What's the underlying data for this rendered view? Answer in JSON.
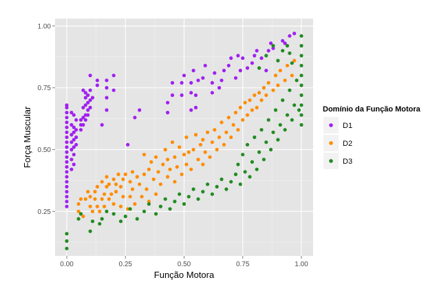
{
  "chart_data": {
    "type": "scatter",
    "xlabel": "Função Motora",
    "ylabel": "Força Muscular",
    "xlim": [
      -0.05,
      1.05
    ],
    "ylim": [
      0.07,
      1.03
    ],
    "xticks": [
      "0.00",
      "0.25",
      "0.50",
      "0.75",
      "1.00"
    ],
    "yticks": [
      "0.25",
      "0.50",
      "0.75",
      "1.00"
    ],
    "grid": true,
    "legend": {
      "title": "Domínio da Função Motora",
      "placement": "right"
    },
    "series": [
      {
        "name": "D1",
        "color": "#a020f0",
        "points": [
          [
            0,
            0.27
          ],
          [
            0,
            0.29
          ],
          [
            0,
            0.31
          ],
          [
            0,
            0.33
          ],
          [
            0,
            0.35
          ],
          [
            0,
            0.37
          ],
          [
            0,
            0.39
          ],
          [
            0,
            0.41
          ],
          [
            0,
            0.43
          ],
          [
            0,
            0.45
          ],
          [
            0,
            0.47
          ],
          [
            0,
            0.49
          ],
          [
            0,
            0.51
          ],
          [
            0,
            0.53
          ],
          [
            0,
            0.55
          ],
          [
            0,
            0.57
          ],
          [
            0,
            0.59
          ],
          [
            0,
            0.61
          ],
          [
            0,
            0.63
          ],
          [
            0,
            0.65
          ],
          [
            0,
            0.67
          ],
          [
            0,
            0.68
          ],
          [
            0.02,
            0.42
          ],
          [
            0.02,
            0.46
          ],
          [
            0.02,
            0.5
          ],
          [
            0.02,
            0.53
          ],
          [
            0.02,
            0.56
          ],
          [
            0.02,
            0.6
          ],
          [
            0.02,
            0.65
          ],
          [
            0.03,
            0.44
          ],
          [
            0.03,
            0.48
          ],
          [
            0.03,
            0.51
          ],
          [
            0.03,
            0.54
          ],
          [
            0.03,
            0.57
          ],
          [
            0.03,
            0.59
          ],
          [
            0.03,
            0.64
          ],
          [
            0.04,
            0.52
          ],
          [
            0.04,
            0.55
          ],
          [
            0.04,
            0.58
          ],
          [
            0.04,
            0.62
          ],
          [
            0.06,
            0.58
          ],
          [
            0.06,
            0.6
          ],
          [
            0.06,
            0.62
          ],
          [
            0.07,
            0.6
          ],
          [
            0.07,
            0.63
          ],
          [
            0.07,
            0.67
          ],
          [
            0.07,
            0.74
          ],
          [
            0.08,
            0.62
          ],
          [
            0.08,
            0.64
          ],
          [
            0.08,
            0.68
          ],
          [
            0.08,
            0.71
          ],
          [
            0.08,
            0.73
          ],
          [
            0.09,
            0.64
          ],
          [
            0.09,
            0.66
          ],
          [
            0.09,
            0.69
          ],
          [
            0.09,
            0.72
          ],
          [
            0.1,
            0.67
          ],
          [
            0.1,
            0.7
          ],
          [
            0.1,
            0.74
          ],
          [
            0.1,
            0.8
          ],
          [
            0.11,
            0.71
          ],
          [
            0.13,
            0.76
          ],
          [
            0.13,
            0.78
          ],
          [
            0.15,
            0.6
          ],
          [
            0.17,
            0.66
          ],
          [
            0.17,
            0.71
          ],
          [
            0.17,
            0.75
          ],
          [
            0.17,
            0.78
          ],
          [
            0.2,
            0.74
          ],
          [
            0.2,
            0.8
          ],
          [
            0.26,
            0.52
          ],
          [
            0.29,
            0.63
          ],
          [
            0.31,
            0.66
          ],
          [
            0.43,
            0.65
          ],
          [
            0.43,
            0.69
          ],
          [
            0.45,
            0.72
          ],
          [
            0.45,
            0.77
          ],
          [
            0.49,
            0.72
          ],
          [
            0.49,
            0.77
          ],
          [
            0.5,
            0.8
          ],
          [
            0.53,
            0.66
          ],
          [
            0.53,
            0.73
          ],
          [
            0.53,
            0.77
          ],
          [
            0.54,
            0.82
          ],
          [
            0.55,
            0.67
          ],
          [
            0.55,
            0.72
          ],
          [
            0.56,
            0.78
          ],
          [
            0.58,
            0.79
          ],
          [
            0.59,
            0.84
          ],
          [
            0.62,
            0.73
          ],
          [
            0.62,
            0.77
          ],
          [
            0.63,
            0.81
          ],
          [
            0.65,
            0.75
          ],
          [
            0.66,
            0.78
          ],
          [
            0.67,
            0.82
          ],
          [
            0.69,
            0.84
          ],
          [
            0.7,
            0.87
          ],
          [
            0.72,
            0.79
          ],
          [
            0.73,
            0.88
          ],
          [
            0.74,
            0.82
          ],
          [
            0.75,
            0.87
          ],
          [
            0.77,
            0.83
          ],
          [
            0.79,
            0.85
          ],
          [
            0.8,
            0.88
          ],
          [
            0.81,
            0.9
          ],
          [
            0.83,
            0.87
          ],
          [
            0.85,
            0.82
          ],
          [
            0.86,
            0.9
          ],
          [
            0.87,
            0.93
          ],
          [
            0.88,
            0.91
          ],
          [
            0.92,
            0.94
          ],
          [
            0.93,
            0.93
          ],
          [
            0.95,
            0.96
          ],
          [
            0.97,
            0.97
          ]
        ]
      },
      {
        "name": "D2",
        "color": "#ff8c00",
        "points": [
          [
            0.05,
            0.28
          ],
          [
            0.05,
            0.25
          ],
          [
            0.06,
            0.3
          ],
          [
            0.07,
            0.23
          ],
          [
            0.08,
            0.3
          ],
          [
            0.09,
            0.33
          ],
          [
            0.1,
            0.27
          ],
          [
            0.1,
            0.31
          ],
          [
            0.11,
            0.25
          ],
          [
            0.12,
            0.3
          ],
          [
            0.12,
            0.33
          ],
          [
            0.13,
            0.27
          ],
          [
            0.13,
            0.35
          ],
          [
            0.14,
            0.25
          ],
          [
            0.15,
            0.3
          ],
          [
            0.15,
            0.37
          ],
          [
            0.16,
            0.27
          ],
          [
            0.16,
            0.32
          ],
          [
            0.17,
            0.35
          ],
          [
            0.17,
            0.39
          ],
          [
            0.18,
            0.3
          ],
          [
            0.18,
            0.36
          ],
          [
            0.19,
            0.32
          ],
          [
            0.2,
            0.28
          ],
          [
            0.2,
            0.38
          ],
          [
            0.21,
            0.33
          ],
          [
            0.21,
            0.36
          ],
          [
            0.22,
            0.4
          ],
          [
            0.23,
            0.27
          ],
          [
            0.23,
            0.35
          ],
          [
            0.24,
            0.31
          ],
          [
            0.24,
            0.38
          ],
          [
            0.25,
            0.4
          ],
          [
            0.26,
            0.26
          ],
          [
            0.27,
            0.31
          ],
          [
            0.27,
            0.37
          ],
          [
            0.28,
            0.34
          ],
          [
            0.28,
            0.41
          ],
          [
            0.29,
            0.28
          ],
          [
            0.3,
            0.39
          ],
          [
            0.31,
            0.36
          ],
          [
            0.32,
            0.31
          ],
          [
            0.33,
            0.4
          ],
          [
            0.33,
            0.48
          ],
          [
            0.34,
            0.34
          ],
          [
            0.35,
            0.29
          ],
          [
            0.35,
            0.42
          ],
          [
            0.36,
            0.45
          ],
          [
            0.37,
            0.38
          ],
          [
            0.38,
            0.32
          ],
          [
            0.38,
            0.47
          ],
          [
            0.39,
            0.41
          ],
          [
            0.4,
            0.36
          ],
          [
            0.41,
            0.44
          ],
          [
            0.42,
            0.5
          ],
          [
            0.43,
            0.39
          ],
          [
            0.43,
            0.46
          ],
          [
            0.44,
            0.42
          ],
          [
            0.45,
            0.53
          ],
          [
            0.46,
            0.37
          ],
          [
            0.46,
            0.47
          ],
          [
            0.47,
            0.43
          ],
          [
            0.48,
            0.51
          ],
          [
            0.49,
            0.4
          ],
          [
            0.5,
            0.48
          ],
          [
            0.51,
            0.44
          ],
          [
            0.51,
            0.55
          ],
          [
            0.52,
            0.49
          ],
          [
            0.53,
            0.42
          ],
          [
            0.54,
            0.5
          ],
          [
            0.55,
            0.56
          ],
          [
            0.56,
            0.46
          ],
          [
            0.57,
            0.52
          ],
          [
            0.58,
            0.44
          ],
          [
            0.58,
            0.54
          ],
          [
            0.59,
            0.49
          ],
          [
            0.6,
            0.57
          ],
          [
            0.61,
            0.47
          ],
          [
            0.62,
            0.53
          ],
          [
            0.63,
            0.58
          ],
          [
            0.64,
            0.5
          ],
          [
            0.65,
            0.55
          ],
          [
            0.66,
            0.61
          ],
          [
            0.67,
            0.52
          ],
          [
            0.68,
            0.57
          ],
          [
            0.69,
            0.63
          ],
          [
            0.7,
            0.55
          ],
          [
            0.71,
            0.6
          ],
          [
            0.72,
            0.65
          ],
          [
            0.73,
            0.58
          ],
          [
            0.74,
            0.67
          ],
          [
            0.75,
            0.62
          ],
          [
            0.76,
            0.69
          ],
          [
            0.77,
            0.64
          ],
          [
            0.78,
            0.7
          ],
          [
            0.79,
            0.66
          ],
          [
            0.8,
            0.72
          ],
          [
            0.81,
            0.67
          ],
          [
            0.82,
            0.73
          ],
          [
            0.83,
            0.7
          ],
          [
            0.84,
            0.75
          ],
          [
            0.85,
            0.72
          ],
          [
            0.86,
            0.77
          ],
          [
            0.88,
            0.74
          ],
          [
            0.89,
            0.8
          ],
          [
            0.9,
            0.76
          ],
          [
            0.91,
            0.82
          ],
          [
            0.93,
            0.78
          ],
          [
            0.94,
            0.84
          ],
          [
            0.96,
            0.8
          ],
          [
            0.97,
            0.86
          ]
        ]
      },
      {
        "name": "D3",
        "color": "#228b22",
        "points": [
          [
            0,
            0.1
          ],
          [
            0,
            0.13
          ],
          [
            0,
            0.16
          ],
          [
            0.05,
            0.22
          ],
          [
            0.06,
            0.24
          ],
          [
            0.1,
            0.17
          ],
          [
            0.11,
            0.21
          ],
          [
            0.14,
            0.2
          ],
          [
            0.15,
            0.22
          ],
          [
            0.17,
            0.25
          ],
          [
            0.2,
            0.24
          ],
          [
            0.23,
            0.21
          ],
          [
            0.25,
            0.23
          ],
          [
            0.27,
            0.26
          ],
          [
            0.3,
            0.22
          ],
          [
            0.33,
            0.25
          ],
          [
            0.35,
            0.28
          ],
          [
            0.38,
            0.24
          ],
          [
            0.4,
            0.27
          ],
          [
            0.42,
            0.3
          ],
          [
            0.44,
            0.26
          ],
          [
            0.46,
            0.29
          ],
          [
            0.48,
            0.32
          ],
          [
            0.5,
            0.28
          ],
          [
            0.52,
            0.31
          ],
          [
            0.54,
            0.34
          ],
          [
            0.56,
            0.3
          ],
          [
            0.58,
            0.33
          ],
          [
            0.6,
            0.36
          ],
          [
            0.62,
            0.32
          ],
          [
            0.64,
            0.35
          ],
          [
            0.66,
            0.38
          ],
          [
            0.68,
            0.34
          ],
          [
            0.7,
            0.37
          ],
          [
            0.72,
            0.4
          ],
          [
            0.73,
            0.44
          ],
          [
            0.74,
            0.36
          ],
          [
            0.75,
            0.48
          ],
          [
            0.76,
            0.41
          ],
          [
            0.77,
            0.52
          ],
          [
            0.78,
            0.39
          ],
          [
            0.79,
            0.45
          ],
          [
            0.8,
            0.55
          ],
          [
            0.81,
            0.42
          ],
          [
            0.82,
            0.49
          ],
          [
            0.83,
            0.58
          ],
          [
            0.84,
            0.46
          ],
          [
            0.85,
            0.53
          ],
          [
            0.86,
            0.62
          ],
          [
            0.87,
            0.5
          ],
          [
            0.88,
            0.57
          ],
          [
            0.89,
            0.66
          ],
          [
            0.9,
            0.54
          ],
          [
            0.91,
            0.6
          ],
          [
            0.92,
            0.7
          ],
          [
            0.93,
            0.58
          ],
          [
            0.94,
            0.64
          ],
          [
            0.95,
            0.74
          ],
          [
            0.96,
            0.62
          ],
          [
            0.97,
            0.68
          ],
          [
            0.98,
            0.78
          ],
          [
            0.99,
            0.66
          ],
          [
            1,
            0.6
          ],
          [
            1,
            0.64
          ],
          [
            1,
            0.68
          ],
          [
            1,
            0.72
          ],
          [
            1,
            0.76
          ],
          [
            1,
            0.8
          ],
          [
            1,
            0.84
          ],
          [
            1,
            0.88
          ],
          [
            1,
            0.92
          ],
          [
            1,
            0.96
          ],
          [
            0.96,
            0.85
          ],
          [
            0.95,
            0.89
          ],
          [
            0.94,
            0.92
          ],
          [
            0.9,
            0.86
          ],
          [
            0.92,
            0.9
          ],
          [
            0.88,
            0.92
          ],
          [
            0.85,
            0.88
          ],
          [
            0.82,
            0.83
          ]
        ]
      }
    ]
  }
}
